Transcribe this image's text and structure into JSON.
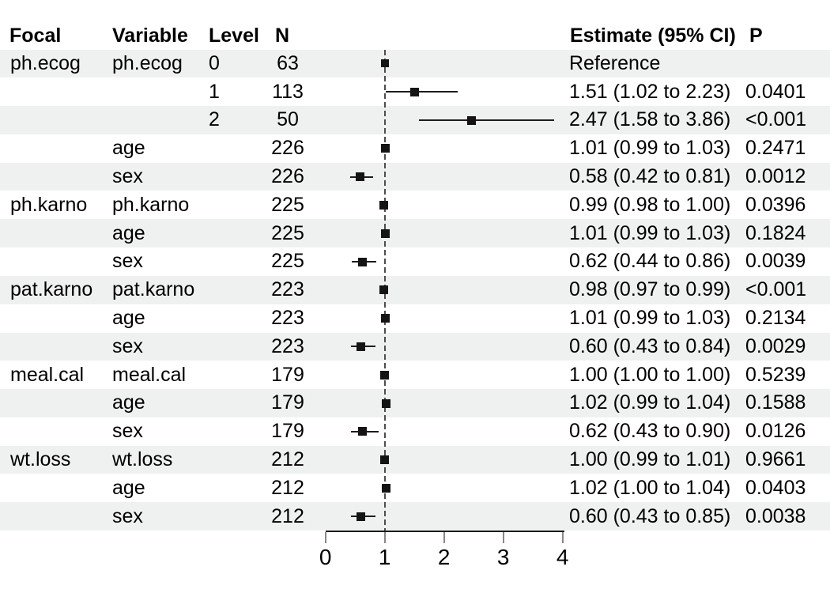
{
  "columns": {
    "focal": "Focal",
    "variable": "Variable",
    "level": "Level",
    "n": "N",
    "estimate": "Estimate (95% CI)",
    "p": "P"
  },
  "chart_data": {
    "type": "forest",
    "x_axis": {
      "ticks": [
        0,
        1,
        2,
        3,
        4
      ],
      "range": [
        0,
        4
      ],
      "reference_line": 1
    },
    "legend": "none",
    "grid": "off",
    "colors": {
      "stripe": "#eff1f1",
      "background": "#ffffff",
      "marker": "#141414",
      "ci_line": "#1c1c1c",
      "text": "#000000",
      "axis_line": "#1a1a1a",
      "tick": "#888888",
      "reference_line": "#4d4d4d"
    },
    "rows": [
      {
        "focal": "ph.ecog",
        "variable": "ph.ecog",
        "level": "0",
        "n": "63",
        "estimate": 1.0,
        "ci_low": null,
        "ci_high": null,
        "estimate_label": "Reference",
        "p": "",
        "reference": true
      },
      {
        "focal": "",
        "variable": "",
        "level": "1",
        "n": "113",
        "estimate": 1.51,
        "ci_low": 1.02,
        "ci_high": 2.23,
        "estimate_label": "1.51 (1.02 to 2.23)",
        "p": "0.0401",
        "reference": false
      },
      {
        "focal": "",
        "variable": "",
        "level": "2",
        "n": "50",
        "estimate": 2.47,
        "ci_low": 1.58,
        "ci_high": 3.86,
        "estimate_label": "2.47 (1.58 to 3.86)",
        "p": "<0.001",
        "reference": false
      },
      {
        "focal": "",
        "variable": "age",
        "level": "",
        "n": "226",
        "estimate": 1.01,
        "ci_low": 0.99,
        "ci_high": 1.03,
        "estimate_label": "1.01 (0.99 to 1.03)",
        "p": "0.2471",
        "reference": false
      },
      {
        "focal": "",
        "variable": "sex",
        "level": "",
        "n": "226",
        "estimate": 0.58,
        "ci_low": 0.42,
        "ci_high": 0.81,
        "estimate_label": "0.58 (0.42 to 0.81)",
        "p": "0.0012",
        "reference": false
      },
      {
        "focal": "ph.karno",
        "variable": "ph.karno",
        "level": "",
        "n": "225",
        "estimate": 0.99,
        "ci_low": 0.98,
        "ci_high": 1.0,
        "estimate_label": "0.99 (0.98 to 1.00)",
        "p": "0.0396",
        "reference": false
      },
      {
        "focal": "",
        "variable": "age",
        "level": "",
        "n": "225",
        "estimate": 1.01,
        "ci_low": 0.99,
        "ci_high": 1.03,
        "estimate_label": "1.01 (0.99 to 1.03)",
        "p": "0.1824",
        "reference": false
      },
      {
        "focal": "",
        "variable": "sex",
        "level": "",
        "n": "225",
        "estimate": 0.62,
        "ci_low": 0.44,
        "ci_high": 0.86,
        "estimate_label": "0.62 (0.44 to 0.86)",
        "p": "0.0039",
        "reference": false
      },
      {
        "focal": "pat.karno",
        "variable": "pat.karno",
        "level": "",
        "n": "223",
        "estimate": 0.98,
        "ci_low": 0.97,
        "ci_high": 0.99,
        "estimate_label": "0.98 (0.97 to 0.99)",
        "p": "<0.001",
        "reference": false
      },
      {
        "focal": "",
        "variable": "age",
        "level": "",
        "n": "223",
        "estimate": 1.01,
        "ci_low": 0.99,
        "ci_high": 1.03,
        "estimate_label": "1.01 (0.99 to 1.03)",
        "p": "0.2134",
        "reference": false
      },
      {
        "focal": "",
        "variable": "sex",
        "level": "",
        "n": "223",
        "estimate": 0.6,
        "ci_low": 0.43,
        "ci_high": 0.84,
        "estimate_label": "0.60 (0.43 to 0.84)",
        "p": "0.0029",
        "reference": false
      },
      {
        "focal": "meal.cal",
        "variable": "meal.cal",
        "level": "",
        "n": "179",
        "estimate": 1.0,
        "ci_low": 1.0,
        "ci_high": 1.0,
        "estimate_label": "1.00 (1.00 to 1.00)",
        "p": "0.5239",
        "reference": false
      },
      {
        "focal": "",
        "variable": "age",
        "level": "",
        "n": "179",
        "estimate": 1.02,
        "ci_low": 0.99,
        "ci_high": 1.04,
        "estimate_label": "1.02 (0.99 to 1.04)",
        "p": "0.1588",
        "reference": false
      },
      {
        "focal": "",
        "variable": "sex",
        "level": "",
        "n": "179",
        "estimate": 0.62,
        "ci_low": 0.43,
        "ci_high": 0.9,
        "estimate_label": "0.62 (0.43 to 0.90)",
        "p": "0.0126",
        "reference": false
      },
      {
        "focal": "wt.loss",
        "variable": "wt.loss",
        "level": "",
        "n": "212",
        "estimate": 1.0,
        "ci_low": 0.99,
        "ci_high": 1.01,
        "estimate_label": "1.00 (0.99 to 1.01)",
        "p": "0.9661",
        "reference": false
      },
      {
        "focal": "",
        "variable": "age",
        "level": "",
        "n": "212",
        "estimate": 1.02,
        "ci_low": 1.0,
        "ci_high": 1.04,
        "estimate_label": "1.02 (1.00 to 1.04)",
        "p": "0.0403",
        "reference": false
      },
      {
        "focal": "",
        "variable": "sex",
        "level": "",
        "n": "212",
        "estimate": 0.6,
        "ci_low": 0.43,
        "ci_high": 0.85,
        "estimate_label": "0.60 (0.43 to 0.85)",
        "p": "0.0038",
        "reference": false
      }
    ]
  }
}
